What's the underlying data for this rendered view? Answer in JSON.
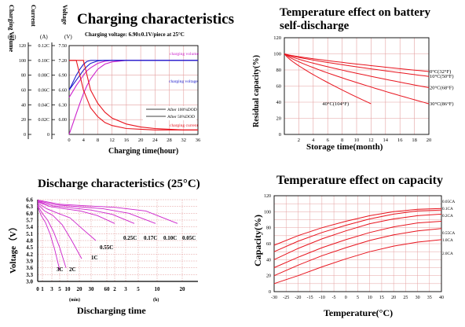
{
  "chart_data": [
    {
      "type": "line",
      "title": "Charging characteristics",
      "subtitle": "Charging voltage:  6.90±0.1V/piece at 25°C",
      "xlabel": "Charging time(hour)",
      "x_ticks": [
        "0",
        "4",
        "8",
        "12",
        "16",
        "20",
        "24",
        "28",
        "32",
        "36"
      ],
      "axes": [
        {
          "label": "Charging Volume",
          "unit": "(%)",
          "ticks": [
            "120",
            "100",
            "80",
            "60",
            "40",
            "20",
            "0"
          ]
        },
        {
          "label": "Current",
          "unit": "(A)",
          "ticks": [
            "0.12C",
            "0.10C",
            "0.08C",
            "0.06C",
            "0.04C",
            "0.02C",
            "0"
          ]
        },
        {
          "label": "Voltage",
          "unit": "(V)",
          "ticks": [
            "7.50",
            "7.20",
            "6.90",
            "6.60",
            "6.30",
            "6.00"
          ]
        }
      ],
      "legend": [
        "After 100%DOD",
        "After 50%DOD"
      ],
      "annotations": [
        "charging volume",
        "charging voltage",
        "charging current"
      ],
      "series": [
        {
          "name": "charging volume",
          "unit": "%",
          "x": [
            0,
            1,
            2,
            3,
            4,
            5,
            6,
            8,
            10,
            12,
            16,
            20,
            24,
            36
          ],
          "values": [
            0,
            14,
            28,
            42,
            55,
            66,
            75,
            88,
            95,
            98,
            100,
            100,
            100,
            100
          ]
        },
        {
          "name": "charging volume",
          "unit": "%",
          "x": [
            0,
            1,
            2,
            3,
            4,
            5,
            6,
            8,
            10,
            12,
            16,
            20,
            36
          ],
          "values": [
            50,
            58,
            66,
            73,
            80,
            86,
            90,
            96,
            99,
            100,
            100,
            100,
            100
          ]
        },
        {
          "name": "charging voltage",
          "unit": "V",
          "x": [
            0,
            1,
            2,
            3,
            4,
            5,
            6,
            8,
            10,
            12,
            16,
            36
          ],
          "values": [
            6.6,
            6.7,
            6.8,
            6.9,
            7.0,
            7.08,
            7.14,
            7.19,
            7.2,
            7.2,
            7.2,
            7.2
          ]
        },
        {
          "name": "charging voltage",
          "unit": "V",
          "x": [
            0,
            1,
            2,
            3,
            4,
            5,
            6,
            8,
            10,
            36
          ],
          "values": [
            6.6,
            6.75,
            6.9,
            7.02,
            7.12,
            7.18,
            7.2,
            7.2,
            7.2,
            7.2
          ]
        },
        {
          "name": "charging current",
          "unit": "C",
          "x": [
            0,
            2,
            4,
            5,
            6,
            8,
            10,
            12,
            16,
            20,
            24,
            28,
            32,
            36
          ],
          "values": [
            0.1,
            0.1,
            0.1,
            0.08,
            0.06,
            0.042,
            0.03,
            0.022,
            0.014,
            0.01,
            0.008,
            0.007,
            0.006,
            0.006
          ]
        },
        {
          "name": "charging current",
          "unit": "C",
          "x": [
            0,
            2,
            3,
            4,
            6,
            8,
            10,
            12,
            16,
            20,
            24,
            36
          ],
          "values": [
            0.1,
            0.1,
            0.08,
            0.06,
            0.036,
            0.024,
            0.016,
            0.012,
            0.008,
            0.007,
            0.006,
            0.006
          ]
        }
      ]
    },
    {
      "type": "line",
      "title": "Temperature effect on battery self-discharge",
      "xlabel": "Storage time(month)",
      "ylabel": "Residual capacity(%)",
      "xlim": [
        0,
        20
      ],
      "ylim": [
        0,
        120
      ],
      "x_ticks": [
        "2",
        "4",
        "6",
        "8",
        "10",
        "12",
        "14",
        "16",
        "18",
        "20"
      ],
      "y_ticks": [
        "0",
        "20",
        "40",
        "60",
        "80",
        "100",
        "120"
      ],
      "series": [
        {
          "name": "0°C(32°F)",
          "x": [
            0,
            20
          ],
          "values": [
            100,
            78
          ]
        },
        {
          "name": "10°C(50°F)",
          "x": [
            0,
            20
          ],
          "values": [
            100,
            72
          ]
        },
        {
          "name": "20°C(68°F)",
          "x": [
            0,
            20
          ],
          "values": [
            100,
            58
          ]
        },
        {
          "name": "30°C(86°F)",
          "x": [
            0,
            20
          ],
          "values": [
            100,
            38
          ]
        },
        {
          "name": "40°C(104°F)",
          "x": [
            0,
            12
          ],
          "values": [
            100,
            38
          ]
        }
      ]
    },
    {
      "type": "line",
      "title": "Discharge characteristics (25°C)",
      "xlabel": "Discharging time",
      "ylabel": "Voltage（V）",
      "ylim": [
        3.0,
        6.6
      ],
      "y_ticks": [
        "6.6",
        "6.3",
        "6.0",
        "5.7",
        "5.4",
        "5.1",
        "4.8",
        "4.5",
        "4.2",
        "3.9",
        "3.6",
        "3.3",
        "3.0"
      ],
      "x_ticks": [
        "0",
        "1",
        "3",
        "5",
        "10",
        "20",
        "30",
        "60",
        "2",
        "3",
        "5",
        "10",
        "20"
      ],
      "x_units": [
        "(min)",
        "(h)"
      ],
      "series": [
        {
          "name": "3C",
          "values": [
            6.3,
            5.9,
            5.6,
            5.1,
            4.4,
            3.5
          ]
        },
        {
          "name": "2C",
          "values": [
            6.35,
            6.0,
            5.7,
            5.2,
            4.5,
            3.6
          ]
        },
        {
          "name": "1C",
          "values": [
            6.4,
            6.1,
            5.9,
            5.5,
            4.8,
            4.0
          ]
        },
        {
          "name": "0.55C",
          "values": [
            6.45,
            6.2,
            6.0,
            5.8,
            5.3,
            4.8
          ]
        },
        {
          "name": "0.25C",
          "values": [
            6.5,
            6.3,
            6.2,
            6.1,
            5.9,
            5.55
          ]
        },
        {
          "name": "0.17C",
          "values": [
            6.52,
            6.33,
            6.24,
            6.14,
            5.95,
            5.55
          ]
        },
        {
          "name": "0.10C",
          "values": [
            6.55,
            6.37,
            6.29,
            6.2,
            6.0,
            5.55
          ]
        },
        {
          "name": "0.05C",
          "values": [
            6.58,
            6.4,
            6.33,
            6.26,
            6.1,
            5.55
          ]
        }
      ]
    },
    {
      "type": "line",
      "title": "Temperature effect on capacity",
      "xlabel": "Temperature(°C)",
      "ylabel": "Capacity(%)",
      "xlim": [
        -30,
        40
      ],
      "ylim": [
        0,
        120
      ],
      "x_ticks": [
        "-30",
        "-25",
        "-20",
        "-15",
        "-10",
        "-5",
        "0",
        "5",
        "10",
        "15",
        "20",
        "25",
        "30",
        "35",
        "40"
      ],
      "y_ticks": [
        "0",
        "20",
        "40",
        "60",
        "80",
        "100",
        "120"
      ],
      "series": [
        {
          "name": "0.05CA",
          "x": [
            -30,
            -20,
            -10,
            0,
            10,
            20,
            30,
            40
          ],
          "values": [
            58,
            70,
            80,
            88,
            95,
            100,
            103,
            104
          ]
        },
        {
          "name": "0.1CA",
          "x": [
            -30,
            -20,
            -10,
            0,
            10,
            20,
            30,
            40
          ],
          "values": [
            50,
            63,
            74,
            83,
            91,
            97,
            101,
            102
          ]
        },
        {
          "name": "0.2CA",
          "x": [
            -30,
            -20,
            -10,
            0,
            10,
            20,
            30,
            40
          ],
          "values": [
            40,
            54,
            66,
            76,
            85,
            91,
            95,
            97
          ]
        },
        {
          "name": "0.55CA",
          "x": [
            -30,
            -20,
            -10,
            0,
            10,
            20,
            30,
            40
          ],
          "values": [
            30,
            43,
            55,
            65,
            74,
            81,
            86,
            88
          ]
        },
        {
          "name": "1.0CA",
          "x": [
            -30,
            -20,
            -10,
            0,
            10,
            20,
            30,
            40
          ],
          "values": [
            20,
            33,
            45,
            55,
            64,
            71,
            76,
            79
          ]
        },
        {
          "name": "2.0CA",
          "x": [
            -30,
            -20,
            -10,
            0,
            10,
            20,
            30,
            40
          ],
          "values": [
            10,
            20,
            31,
            41,
            50,
            57,
            62,
            65
          ]
        }
      ]
    }
  ],
  "colors": {
    "grid": "#e4a0a0",
    "curve": "#e8141e",
    "volume": "#cc22cc",
    "voltage": "#1c1ccc",
    "axis": "#000000",
    "discharge_curve": "#cc22cc"
  }
}
